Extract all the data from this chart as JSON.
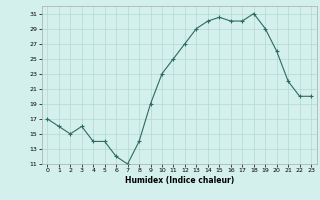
{
  "x": [
    0,
    1,
    2,
    3,
    4,
    5,
    6,
    7,
    8,
    9,
    10,
    11,
    12,
    13,
    14,
    15,
    16,
    17,
    18,
    19,
    20,
    21,
    22,
    23
  ],
  "y": [
    17,
    16,
    15,
    16,
    14,
    14,
    12,
    11,
    14,
    19,
    23,
    25,
    27,
    29,
    30,
    30.5,
    30,
    30,
    31,
    29,
    26,
    22,
    20,
    20
  ],
  "title": "",
  "xlabel": "Humidex (Indice chaleur)",
  "line_color": "#2d6b5e",
  "marker": "+",
  "bg_color": "#d4f0ec",
  "grid_color": "#b2d8d2",
  "ylim": [
    11,
    32
  ],
  "xlim": [
    -0.5,
    23.5
  ],
  "yticks": [
    11,
    13,
    15,
    17,
    19,
    21,
    23,
    25,
    27,
    29,
    31
  ],
  "xticks": [
    0,
    1,
    2,
    3,
    4,
    5,
    6,
    7,
    8,
    9,
    10,
    11,
    12,
    13,
    14,
    15,
    16,
    17,
    18,
    19,
    20,
    21,
    22,
    23
  ]
}
